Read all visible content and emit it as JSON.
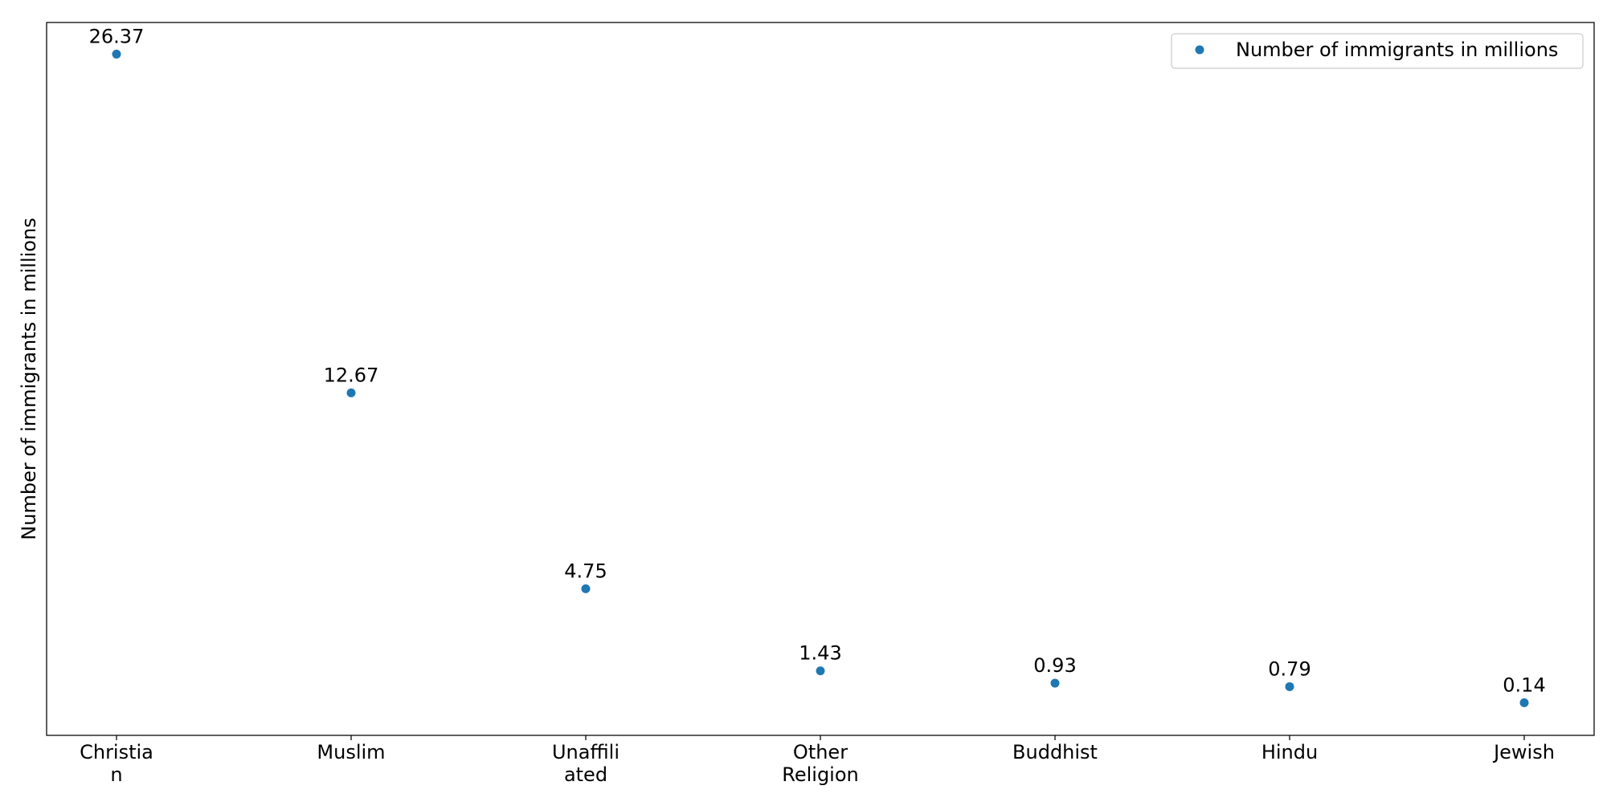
{
  "chart_data": {
    "type": "scatter",
    "categories": [
      [
        "Christia",
        "n"
      ],
      [
        "Muslim"
      ],
      [
        "Unaffili",
        "ated"
      ],
      [
        "Other",
        "Religion"
      ],
      [
        "Buddhist"
      ],
      [
        "Hindu"
      ],
      [
        "Jewish"
      ]
    ],
    "series": [
      {
        "name": "Number of immigrants in millions",
        "values": [
          26.37,
          12.67,
          4.75,
          1.43,
          0.93,
          0.79,
          0.14
        ],
        "color": "#1f77b4"
      }
    ],
    "data_labels": [
      "26.37",
      "12.67",
      "4.75",
      "1.43",
      "0.93",
      "0.79",
      "0.14"
    ],
    "title": "",
    "xlabel": "",
    "ylabel": "Number of immigrants in millions",
    "ylim": [
      -1.18,
      27.65
    ],
    "y_ticks_shown": false,
    "grid": false,
    "legend": {
      "position": "top-right",
      "label": "Number of immigrants in millions"
    }
  }
}
